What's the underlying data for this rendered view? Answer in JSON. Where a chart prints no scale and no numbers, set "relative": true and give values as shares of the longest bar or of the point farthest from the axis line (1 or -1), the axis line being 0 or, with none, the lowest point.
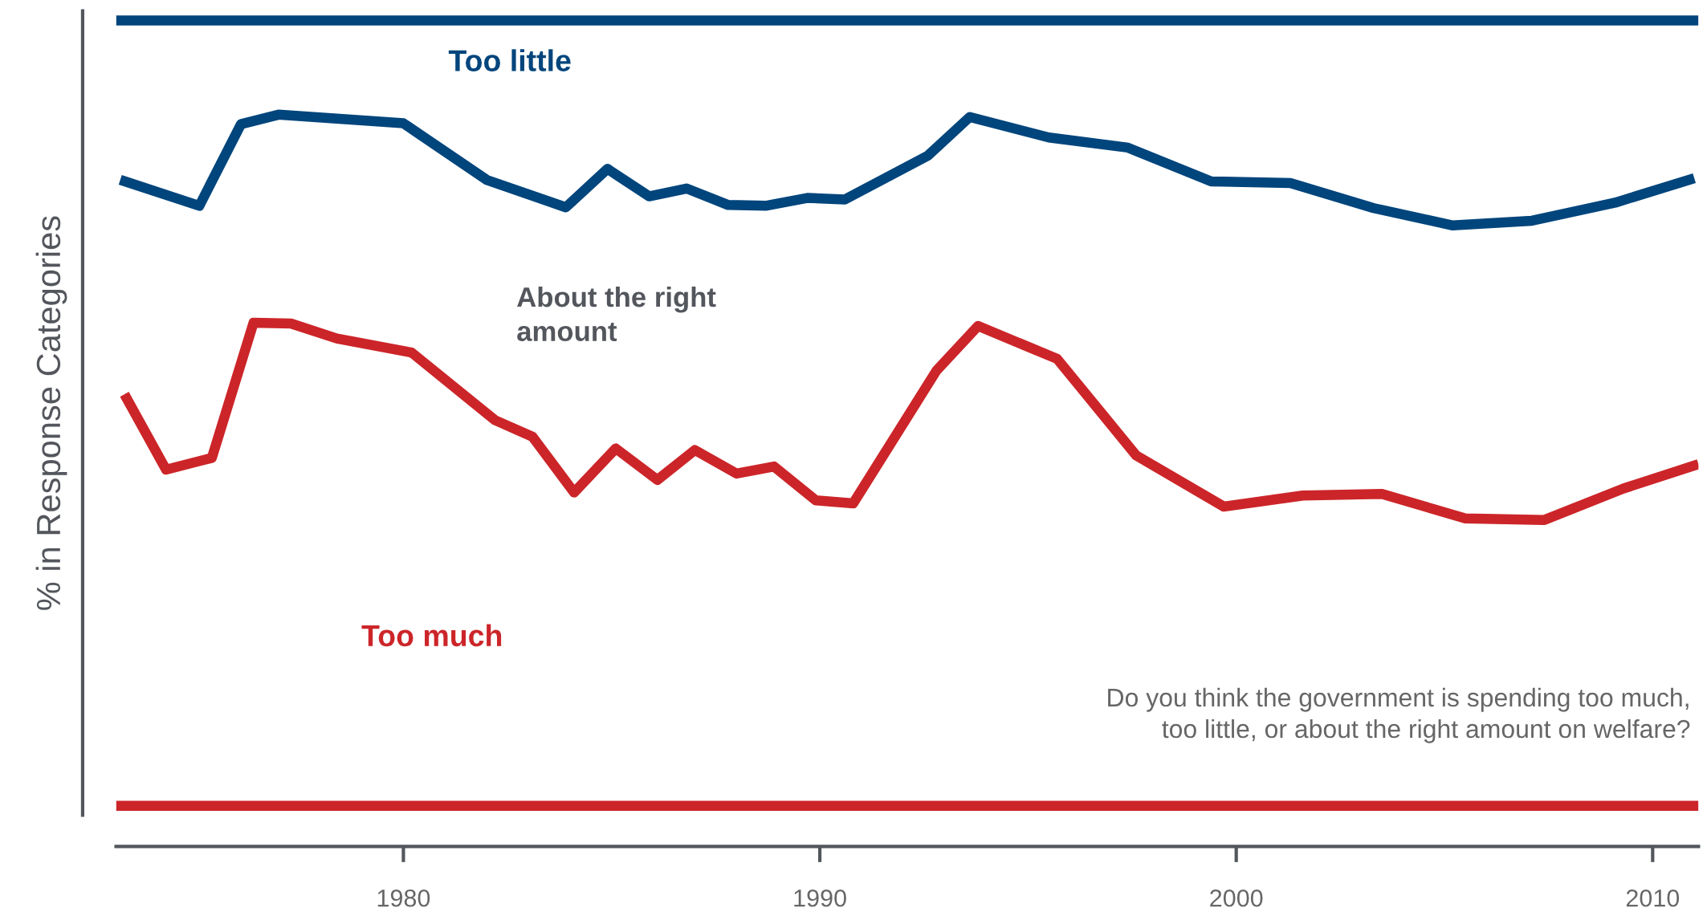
{
  "chart_data": {
    "type": "line",
    "relative": true,
    "ylabel": "% in Response Categories",
    "xlim": [
      1973.1,
      2011.1
    ],
    "xticks": [
      1980,
      1990,
      2000,
      2010
    ],
    "grid": false,
    "legend": false,
    "series": [
      {
        "color": "#00457c",
        "x": [
          1973.1,
          2011.1
        ],
        "values": [
          1,
          1
        ]
      },
      {
        "color": "#00457c",
        "x": [
          1973.2,
          1975.1,
          1976.1,
          1977.0,
          1980.0,
          1982.0,
          1983.9,
          1984.9,
          1985.9,
          1986.8,
          1987.8,
          1988.7,
          1989.7,
          1990.6,
          1992.6,
          1993.6,
          1995.5,
          1997.4,
          1999.4,
          2001.3,
          2003.3,
          2005.2,
          2007.1,
          2009.1,
          2011.0
        ],
        "values": [
          0.797,
          0.764,
          0.868,
          0.88,
          0.869,
          0.797,
          0.762,
          0.811,
          0.776,
          0.786,
          0.765,
          0.764,
          0.774,
          0.772,
          0.828,
          0.877,
          0.851,
          0.838,
          0.795,
          0.793,
          0.761,
          0.739,
          0.745,
          0.768,
          0.799
        ]
      },
      {
        "color": "#cc2529",
        "x": [
          1973.3,
          1974.3,
          1975.4,
          1976.4,
          1977.3,
          1978.4,
          1980.2,
          1982.2,
          1983.1,
          1984.1,
          1985.1,
          1986.1,
          1987.0,
          1988.0,
          1988.9,
          1989.9,
          1990.8,
          1992.8,
          1993.8,
          1995.7,
          1997.6,
          1999.7,
          2001.6,
          2003.5,
          2005.5,
          2007.4,
          2009.3,
          2011.1
        ],
        "values": [
          0.524,
          0.428,
          0.443,
          0.615,
          0.614,
          0.595,
          0.577,
          0.491,
          0.47,
          0.399,
          0.455,
          0.415,
          0.453,
          0.423,
          0.432,
          0.389,
          0.385,
          0.554,
          0.611,
          0.569,
          0.446,
          0.381,
          0.395,
          0.397,
          0.366,
          0.364,
          0.404,
          0.435
        ]
      },
      {
        "color": "#cc2529",
        "x": [
          1973.1,
          2011.1
        ],
        "values": [
          0,
          0
        ]
      }
    ],
    "annotations": [
      "Too little",
      "About the right\namount",
      "Too much",
      "Do you think the government is spending too much,\ntoo little, or about the right amount on welfare?"
    ]
  }
}
